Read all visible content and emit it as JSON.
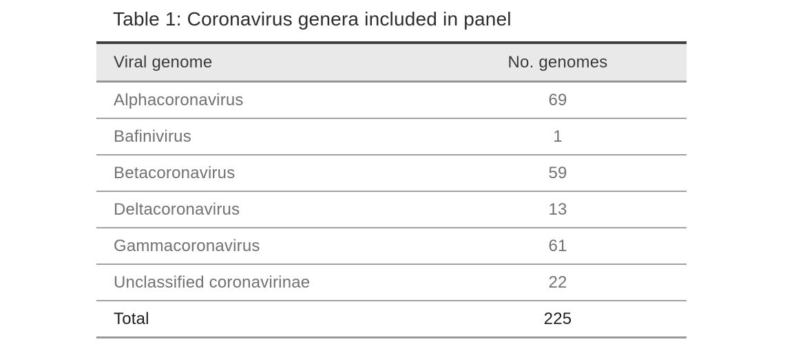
{
  "title": "Table 1: Coronavirus genera included in panel",
  "table": {
    "columns": [
      {
        "label": "Viral genome"
      },
      {
        "label": "No. genomes"
      }
    ],
    "rows": [
      {
        "genome": "Alphacoronavirus",
        "count": "69"
      },
      {
        "genome": "Bafinivirus",
        "count": "1"
      },
      {
        "genome": "Betacoronavirus",
        "count": "59"
      },
      {
        "genome": "Deltacoronavirus",
        "count": "13"
      },
      {
        "genome": "Gammacoronavirus",
        "count": "61"
      },
      {
        "genome": "Unclassified coronavirinae",
        "count": "22"
      }
    ],
    "total": {
      "label": "Total",
      "count": "225"
    }
  },
  "colors": {
    "header_bg": "#e9e9e9",
    "top_border": "#414141",
    "divider": "#a0a0a0",
    "header_text": "#3a3a3a",
    "row_text": "#717171",
    "total_text": "#1f1f1f",
    "title_text": "#2d2d2d"
  }
}
